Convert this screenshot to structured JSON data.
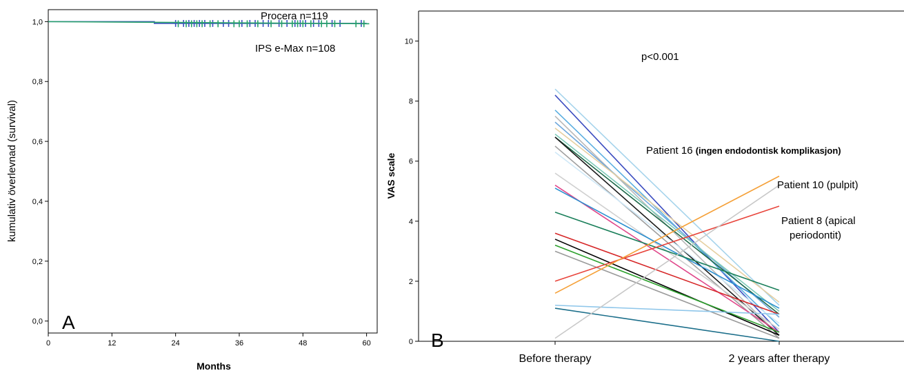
{
  "chart_data": [
    {
      "type": "line",
      "panel_label": "A",
      "xlabel": "Months",
      "ylabel": "kumulativ överlevnad (survival)",
      "xlim": [
        0,
        62
      ],
      "ylim": [
        -0.04,
        1.04
      ],
      "xticks": [
        0,
        12,
        24,
        36,
        48,
        60
      ],
      "xtick_labels": [
        "0",
        "12",
        "24",
        "36",
        "48",
        "60"
      ],
      "yticks": [
        0.0,
        0.2,
        0.4,
        0.6,
        0.8,
        1.0
      ],
      "ytick_labels": [
        "0,0",
        "0,2",
        "0,4",
        "0,6",
        "0,8",
        "1,0"
      ],
      "series": [
        {
          "name": "Procera n=119",
          "color": "#3b4cc0",
          "x": [
            0,
            20,
            20,
            60
          ],
          "y": [
            1.0,
            1.0,
            0.994,
            0.994
          ],
          "censor_x": [
            24,
            25.5,
            26.5,
            27.5,
            28.5,
            29.5,
            31,
            33,
            34,
            36.5,
            38,
            39,
            40.5,
            41.5,
            43.5,
            45,
            46.5,
            47.5,
            48.5,
            50,
            51,
            53.5,
            55,
            59
          ]
        },
        {
          "name": "IPS e-Max n=108",
          "color": "#26a269",
          "x": [
            0,
            60.5
          ],
          "y": [
            1.0,
            0.993
          ],
          "censor_x": [
            24.5,
            26,
            27,
            28,
            29,
            30.5,
            32,
            35,
            36,
            37.5,
            39.5,
            42,
            44,
            46,
            47,
            48,
            49.5,
            51.5,
            52.5,
            54,
            58,
            59.5
          ]
        }
      ]
    },
    {
      "type": "line",
      "panel_label": "B",
      "ylabel": "VAS scale",
      "categories": [
        "Before therapy",
        "2 years after therapy"
      ],
      "ylim": [
        0,
        11
      ],
      "yticks": [
        0,
        2,
        4,
        6,
        8,
        10
      ],
      "ytick_labels": [
        "0",
        "2",
        "4",
        "6",
        "8",
        "10"
      ],
      "annotations": {
        "p_value": "p<0.001",
        "patient16_a": "Patient 16 ",
        "patient16_b": "(ingen endodontisk komplikasjon)",
        "patient10": "Patient 10 (pulpit)",
        "patient8_line1": "Patient 8 (apical",
        "patient8_line2": "periodontit)"
      },
      "series": [
        {
          "color": "#a6d4ec",
          "values": [
            8.4,
            1.2
          ]
        },
        {
          "color": "#3b4cc0",
          "values": [
            8.2,
            0.3
          ]
        },
        {
          "color": "#5aaee0",
          "values": [
            7.7,
            0.5
          ]
        },
        {
          "color": "#b8b8b8",
          "values": [
            7.5,
            0.2
          ]
        },
        {
          "color": "#6fa8dc",
          "values": [
            7.3,
            0.8
          ]
        },
        {
          "color": "#e6cfa0",
          "values": [
            7.1,
            1.3
          ]
        },
        {
          "color": "#7ecbb8",
          "values": [
            6.9,
            1.0
          ]
        },
        {
          "color": "#1f6b4a",
          "values": [
            6.8,
            0.9
          ]
        },
        {
          "color": "#1a1a1a",
          "values": [
            6.8,
            0.2
          ]
        },
        {
          "color": "#9e9e9e",
          "values": [
            6.5,
            0.1
          ]
        },
        {
          "color": "#cfe8f7",
          "values": [
            6.3,
            0.6
          ]
        },
        {
          "color": "#d0d0d0",
          "values": [
            5.6,
            0.4
          ]
        },
        {
          "color": "#e0488b",
          "values": [
            5.2,
            0.3
          ]
        },
        {
          "color": "#2a8fd0",
          "values": [
            5.1,
            1.1
          ]
        },
        {
          "color": "#1a7f5a",
          "values": [
            4.3,
            1.7
          ]
        },
        {
          "color": "#d62728",
          "values": [
            3.6,
            0.9
          ]
        },
        {
          "color": "#000000",
          "values": [
            3.4,
            0.2
          ]
        },
        {
          "color": "#2ca02c",
          "values": [
            3.2,
            0.3
          ]
        },
        {
          "color": "#9a9a9a",
          "values": [
            3.0,
            0.1
          ]
        },
        {
          "color": "#e8453c",
          "values": [
            2.0,
            4.5
          ]
        },
        {
          "color": "#f5a038",
          "values": [
            1.6,
            5.5
          ]
        },
        {
          "color": "#8ec6ea",
          "values": [
            1.2,
            0.9
          ]
        },
        {
          "color": "#1b6e8a",
          "values": [
            1.1,
            0.0
          ]
        },
        {
          "color": "#c8c8c8",
          "values": [
            0.1,
            5.2
          ]
        }
      ]
    }
  ]
}
